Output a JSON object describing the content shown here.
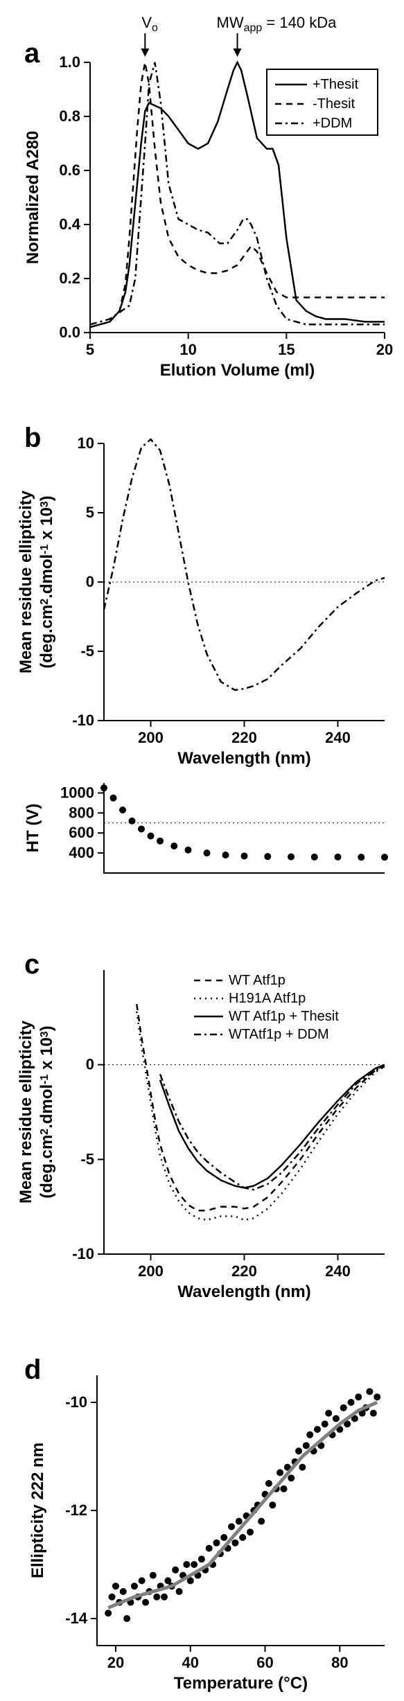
{
  "figure_width": 583,
  "figure_height": 2455,
  "background_color": "#ffffff",
  "stroke_color": "#000000",
  "panel_a": {
    "label": "a",
    "xlabel": "Elution Volume (ml)",
    "ylabel": "Normalized A280",
    "xlim": [
      5,
      20
    ],
    "xtick_step": 5,
    "ylim": [
      0.0,
      1.0
    ],
    "ytick_step": 0.2,
    "annotations": {
      "vo_label": "V",
      "vo_sub": "o",
      "mw_label": "MW",
      "mw_sub": "app",
      "mw_text": " = 140 kDa"
    },
    "arrow_positions_x": [
      7.8,
      12.5
    ],
    "legend": [
      {
        "label": "+Thesit",
        "style": "solid"
      },
      {
        "label": "-Thesit",
        "style": "dashed"
      },
      {
        "label": "+DDM",
        "style": "dashdot"
      }
    ],
    "series": {
      "plus_thesit": {
        "style": "solid",
        "x": [
          5,
          6,
          6.5,
          6.8,
          7,
          7.2,
          7.4,
          7.6,
          7.8,
          8,
          8.3,
          8.6,
          9,
          9.5,
          10,
          10.5,
          11,
          11.5,
          12,
          12.3,
          12.5,
          12.7,
          13,
          13.5,
          14,
          14.3,
          14.6,
          15,
          15.5,
          16,
          16.5,
          17,
          18,
          19,
          20
        ],
        "y": [
          0.02,
          0.04,
          0.08,
          0.15,
          0.25,
          0.4,
          0.55,
          0.7,
          0.82,
          0.85,
          0.84,
          0.83,
          0.8,
          0.75,
          0.7,
          0.68,
          0.7,
          0.78,
          0.9,
          0.97,
          1.0,
          0.97,
          0.88,
          0.72,
          0.68,
          0.68,
          0.62,
          0.35,
          0.12,
          0.08,
          0.06,
          0.05,
          0.05,
          0.04,
          0.04
        ]
      },
      "minus_thesit": {
        "style": "dashed",
        "x": [
          5,
          6,
          6.5,
          6.8,
          7,
          7.2,
          7.4,
          7.6,
          7.8,
          8,
          8.3,
          8.6,
          9,
          9.5,
          10,
          10.5,
          11,
          11.5,
          12,
          12.5,
          13,
          13.2,
          13.5,
          14,
          14.5,
          15,
          16,
          17,
          18,
          19,
          20
        ],
        "y": [
          0.02,
          0.04,
          0.08,
          0.18,
          0.35,
          0.55,
          0.75,
          0.92,
          1.0,
          0.92,
          0.68,
          0.48,
          0.35,
          0.28,
          0.25,
          0.23,
          0.22,
          0.22,
          0.23,
          0.25,
          0.3,
          0.32,
          0.3,
          0.22,
          0.15,
          0.13,
          0.13,
          0.13,
          0.13,
          0.13,
          0.13
        ]
      },
      "plus_ddm": {
        "style": "dashdot",
        "x": [
          5,
          6,
          7,
          7.3,
          7.5,
          7.8,
          8,
          8.3,
          8.6,
          9,
          9.5,
          10,
          10.5,
          11,
          11.3,
          11.6,
          12,
          12.5,
          12.8,
          13,
          13.2,
          13.5,
          14,
          14.5,
          15,
          16,
          17,
          18,
          19,
          20
        ],
        "y": [
          0.03,
          0.05,
          0.1,
          0.2,
          0.4,
          0.7,
          0.92,
          1.0,
          0.85,
          0.55,
          0.42,
          0.4,
          0.38,
          0.37,
          0.35,
          0.33,
          0.33,
          0.38,
          0.42,
          0.42,
          0.4,
          0.35,
          0.2,
          0.1,
          0.05,
          0.03,
          0.03,
          0.03,
          0.03,
          0.03
        ]
      }
    }
  },
  "panel_b": {
    "label": "b",
    "xlabel": "Wavelength (nm)",
    "ylabel_line1": "Mean residue ellipticity",
    "ylabel_line2_prefix": "(deg.cm",
    "ylabel_line2_sup1": "2",
    "ylabel_line2_mid": ".dmol",
    "ylabel_line2_sup2": "-1",
    "ylabel_line2_suffix": " x 10",
    "ylabel_line2_sup3": "3",
    "ylabel_line2_end": ")",
    "xlim": [
      190,
      250
    ],
    "xticks": [
      200,
      220,
      240
    ],
    "ylim": [
      -10,
      10
    ],
    "ytick_step": 5,
    "zero_line": true,
    "series": {
      "cd": {
        "style": "dashdot",
        "x": [
          190,
          192,
          194,
          196,
          198,
          200,
          202,
          204,
          206,
          208,
          210,
          212,
          215,
          218,
          220,
          222,
          225,
          228,
          232,
          236,
          240,
          244,
          248,
          250
        ],
        "y": [
          -2.0,
          1.0,
          4.5,
          7.5,
          9.7,
          10.3,
          9.5,
          7.0,
          3.5,
          0.0,
          -3.0,
          -5.2,
          -7.2,
          -7.8,
          -7.7,
          -7.5,
          -7.0,
          -6.0,
          -4.8,
          -3.2,
          -1.8,
          -0.8,
          0.1,
          0.3
        ]
      }
    },
    "ht": {
      "ylabel": "HT (V)",
      "ylim": [
        200,
        1100
      ],
      "yticks": [
        400,
        600,
        800,
        1000
      ],
      "ref_line_y": 700,
      "x": [
        190,
        192,
        194,
        196,
        198,
        200,
        202,
        205,
        208,
        212,
        216,
        220,
        225,
        230,
        235,
        240,
        245,
        250
      ],
      "y": [
        1050,
        950,
        830,
        720,
        640,
        570,
        520,
        470,
        430,
        400,
        380,
        370,
        365,
        362,
        360,
        360,
        358,
        358
      ]
    }
  },
  "panel_c": {
    "label": "c",
    "xlabel": "Wavelength (nm)",
    "ylabel_line1": "Mean residue ellipticity",
    "xlim": [
      190,
      250
    ],
    "xticks": [
      200,
      220,
      240
    ],
    "ylim": [
      -10,
      5
    ],
    "yticks": [
      -10,
      -5,
      0
    ],
    "zero_line": true,
    "legend": [
      {
        "label": "WT Atf1p",
        "style": "dashed"
      },
      {
        "label": "H191A Atf1p",
        "style": "dotted"
      },
      {
        "label": "WT Atf1p + Thesit",
        "style": "solid"
      },
      {
        "label": "WTAtf1p + DDM",
        "style": "dashdot"
      }
    ],
    "series": {
      "wt": {
        "style": "dashed",
        "x": [
          197,
          198,
          199,
          200,
          201,
          202,
          204,
          206,
          208,
          210,
          212,
          215,
          218,
          220,
          222,
          225,
          228,
          232,
          236,
          240,
          244,
          248,
          250
        ],
        "y": [
          3.2,
          1.5,
          0.0,
          -1.5,
          -3.0,
          -4.2,
          -5.8,
          -6.8,
          -7.4,
          -7.7,
          -7.7,
          -7.5,
          -7.5,
          -7.6,
          -7.5,
          -7.0,
          -6.2,
          -5.0,
          -3.6,
          -2.3,
          -1.2,
          -0.3,
          0.0
        ]
      },
      "h191a": {
        "style": "dotted",
        "x": [
          197,
          198,
          199,
          200,
          201,
          202,
          204,
          206,
          208,
          210,
          212,
          215,
          218,
          220,
          222,
          225,
          228,
          232,
          236,
          240,
          244,
          248,
          250
        ],
        "y": [
          2.8,
          1.0,
          -0.5,
          -2.0,
          -3.5,
          -4.8,
          -6.3,
          -7.2,
          -7.8,
          -8.1,
          -8.2,
          -8.0,
          -8.0,
          -8.2,
          -8.1,
          -7.6,
          -6.8,
          -5.5,
          -4.0,
          -2.6,
          -1.4,
          -0.4,
          -0.1
        ]
      },
      "wt_thesit": {
        "style": "solid",
        "x": [
          202,
          204,
          206,
          208,
          210,
          212,
          215,
          218,
          220,
          222,
          225,
          228,
          232,
          236,
          240,
          244,
          248,
          250
        ],
        "y": [
          -0.8,
          -2.2,
          -3.5,
          -4.4,
          -5.1,
          -5.6,
          -6.1,
          -6.4,
          -6.5,
          -6.4,
          -6.0,
          -5.3,
          -4.2,
          -3.0,
          -1.9,
          -0.9,
          -0.2,
          0.0
        ]
      },
      "wt_ddm": {
        "style": "dashdot",
        "x": [
          202,
          204,
          206,
          208,
          210,
          212,
          215,
          218,
          220,
          222,
          225,
          228,
          232,
          236,
          240,
          244,
          248,
          250
        ],
        "y": [
          -0.5,
          -1.8,
          -3.0,
          -3.9,
          -4.6,
          -5.1,
          -5.7,
          -6.2,
          -6.5,
          -6.6,
          -6.3,
          -5.7,
          -4.6,
          -3.3,
          -2.1,
          -1.0,
          -0.3,
          -0.1
        ]
      }
    }
  },
  "panel_d": {
    "label": "d",
    "xlabel": "Temperature (°C)",
    "ylabel": "Ellipticity 222 nm",
    "xlim": [
      15,
      92
    ],
    "xticks": [
      20,
      40,
      60,
      80
    ],
    "ylim": [
      -14.5,
      -9.5
    ],
    "yticks": [
      -14,
      -12,
      -10
    ],
    "fit_color": "#808080",
    "fit": {
      "x": [
        18,
        25,
        30,
        35,
        40,
        45,
        50,
        55,
        60,
        65,
        70,
        75,
        80,
        85,
        90
      ],
      "y": [
        -13.8,
        -13.6,
        -13.5,
        -13.4,
        -13.2,
        -13.0,
        -12.6,
        -12.2,
        -11.8,
        -11.4,
        -11.0,
        -10.7,
        -10.4,
        -10.15,
        -10.0
      ]
    },
    "points": {
      "x": [
        18,
        19,
        20,
        21,
        22,
        23,
        24,
        25,
        26,
        27,
        28,
        29,
        30,
        31,
        32,
        33,
        34,
        35,
        36,
        37,
        38,
        39,
        40,
        41,
        42,
        43,
        44,
        45,
        46,
        47,
        48,
        49,
        50,
        51,
        52,
        53,
        54,
        55,
        56,
        57,
        58,
        59,
        60,
        61,
        62,
        63,
        64,
        65,
        66,
        67,
        68,
        69,
        70,
        71,
        72,
        73,
        74,
        75,
        76,
        77,
        78,
        79,
        80,
        81,
        82,
        83,
        84,
        85,
        86,
        87,
        88,
        89,
        90
      ],
      "y": [
        -13.9,
        -13.6,
        -13.4,
        -13.7,
        -13.5,
        -14.0,
        -13.7,
        -13.4,
        -13.6,
        -13.3,
        -13.7,
        -13.5,
        -13.2,
        -13.6,
        -13.4,
        -13.6,
        -13.3,
        -13.4,
        -13.1,
        -13.5,
        -13.2,
        -13.0,
        -13.3,
        -13.0,
        -13.2,
        -12.9,
        -13.1,
        -12.7,
        -13.0,
        -12.6,
        -12.8,
        -12.5,
        -12.7,
        -12.3,
        -12.6,
        -12.2,
        -12.5,
        -12.1,
        -12.4,
        -12.0,
        -11.9,
        -12.2,
        -11.7,
        -11.5,
        -11.9,
        -11.6,
        -11.3,
        -11.6,
        -11.2,
        -11.4,
        -11.1,
        -10.9,
        -11.2,
        -10.8,
        -10.6,
        -10.9,
        -10.5,
        -10.8,
        -10.4,
        -10.2,
        -10.6,
        -10.3,
        -10.5,
        -10.1,
        -10.4,
        -10.0,
        -10.3,
        -9.9,
        -10.2,
        -10.1,
        -9.8,
        -10.2,
        -9.9
      ]
    }
  }
}
